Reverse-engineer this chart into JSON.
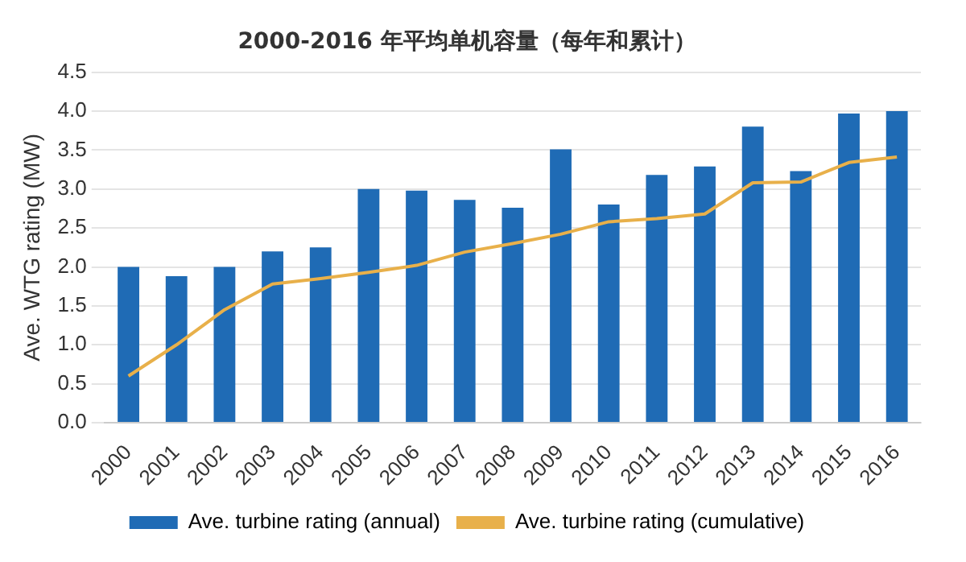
{
  "chart_data": {
    "type": "bar",
    "title": "2000-2016 年平均单机容量（每年和累计）",
    "ylabel": "Ave. WTG rating (MW)",
    "categories": [
      "2000",
      "2001",
      "2002",
      "2003",
      "2004",
      "2005",
      "2006",
      "2007",
      "2008",
      "2009",
      "2010",
      "2011",
      "2012",
      "2013",
      "2014",
      "2015",
      "2016"
    ],
    "series": [
      {
        "name": "Ave. turbine rating (annual)",
        "color": "#1f6bb5",
        "values": [
          2.0,
          1.88,
          2.0,
          2.2,
          2.25,
          3.0,
          2.98,
          2.86,
          2.76,
          3.51,
          2.8,
          3.18,
          3.29,
          3.8,
          3.23,
          3.97,
          4.0
        ]
      },
      {
        "name": "Ave. turbine rating (cumulative)",
        "type": "line",
        "color": "#e8b04a",
        "values": [
          0.6,
          1.0,
          1.45,
          1.78,
          1.85,
          1.93,
          2.02,
          2.19,
          2.3,
          2.42,
          2.58,
          2.62,
          2.68,
          3.08,
          3.09,
          3.34,
          3.41
        ]
      }
    ],
    "ylim": [
      0,
      4.5
    ],
    "yticks": [
      {
        "value": 0,
        "label": "0.0"
      },
      {
        "value": 0.5,
        "label": "0.5"
      },
      {
        "value": 1,
        "label": "1.0"
      },
      {
        "value": 1.5,
        "label": "1.5"
      },
      {
        "value": 2,
        "label": "2.0"
      },
      {
        "value": 2.5,
        "label": "2.5"
      },
      {
        "value": 3,
        "label": "3.0"
      },
      {
        "value": 3.5,
        "label": "3.5"
      },
      {
        "value": 4,
        "label": "4.0"
      },
      {
        "value": 4.5,
        "label": "4.5"
      }
    ],
    "grid": "y",
    "legend": "bottom",
    "marker": "none"
  }
}
